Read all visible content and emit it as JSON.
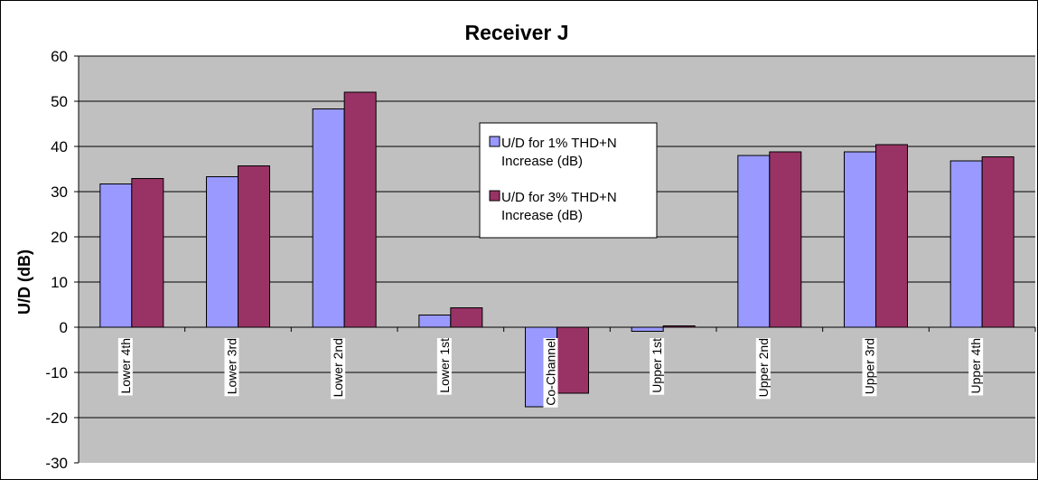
{
  "chart_data": {
    "type": "bar",
    "title": "Receiver J",
    "xlabel": "",
    "ylabel": "U/D (dB)",
    "ylim": [
      -30,
      60
    ],
    "y_ticks": [
      "60",
      "50",
      "40",
      "30",
      "20",
      "10",
      "0",
      "-10",
      "-20",
      "-30"
    ],
    "categories": [
      "Lower 4th",
      "Lower 3rd",
      "Lower 2nd",
      "Lower 1st",
      "Co-Channel",
      "Upper 1st",
      "Upper 2nd",
      "Upper 3rd",
      "Upper 4th"
    ],
    "series": [
      {
        "name": "U/D for 1% THD+N Increase (dB)",
        "legend_lines": [
          "U/D for 1% THD+N",
          "Increase (dB)"
        ],
        "color": "#9999ff",
        "values": [
          31.7,
          33.3,
          48.3,
          2.7,
          -17.6,
          -0.9,
          38.0,
          38.8,
          36.8
        ]
      },
      {
        "name": "U/D for 3% THD+N Increase (dB)",
        "legend_lines": [
          "U/D for 3% THD+N",
          "Increase (dB)"
        ],
        "color": "#993366",
        "values": [
          32.9,
          35.7,
          52.0,
          4.3,
          -14.6,
          0.3,
          38.8,
          40.4,
          37.7
        ]
      }
    ],
    "plot_background": "#c0c0c0",
    "grid": true,
    "legend_position": "inside-center"
  }
}
